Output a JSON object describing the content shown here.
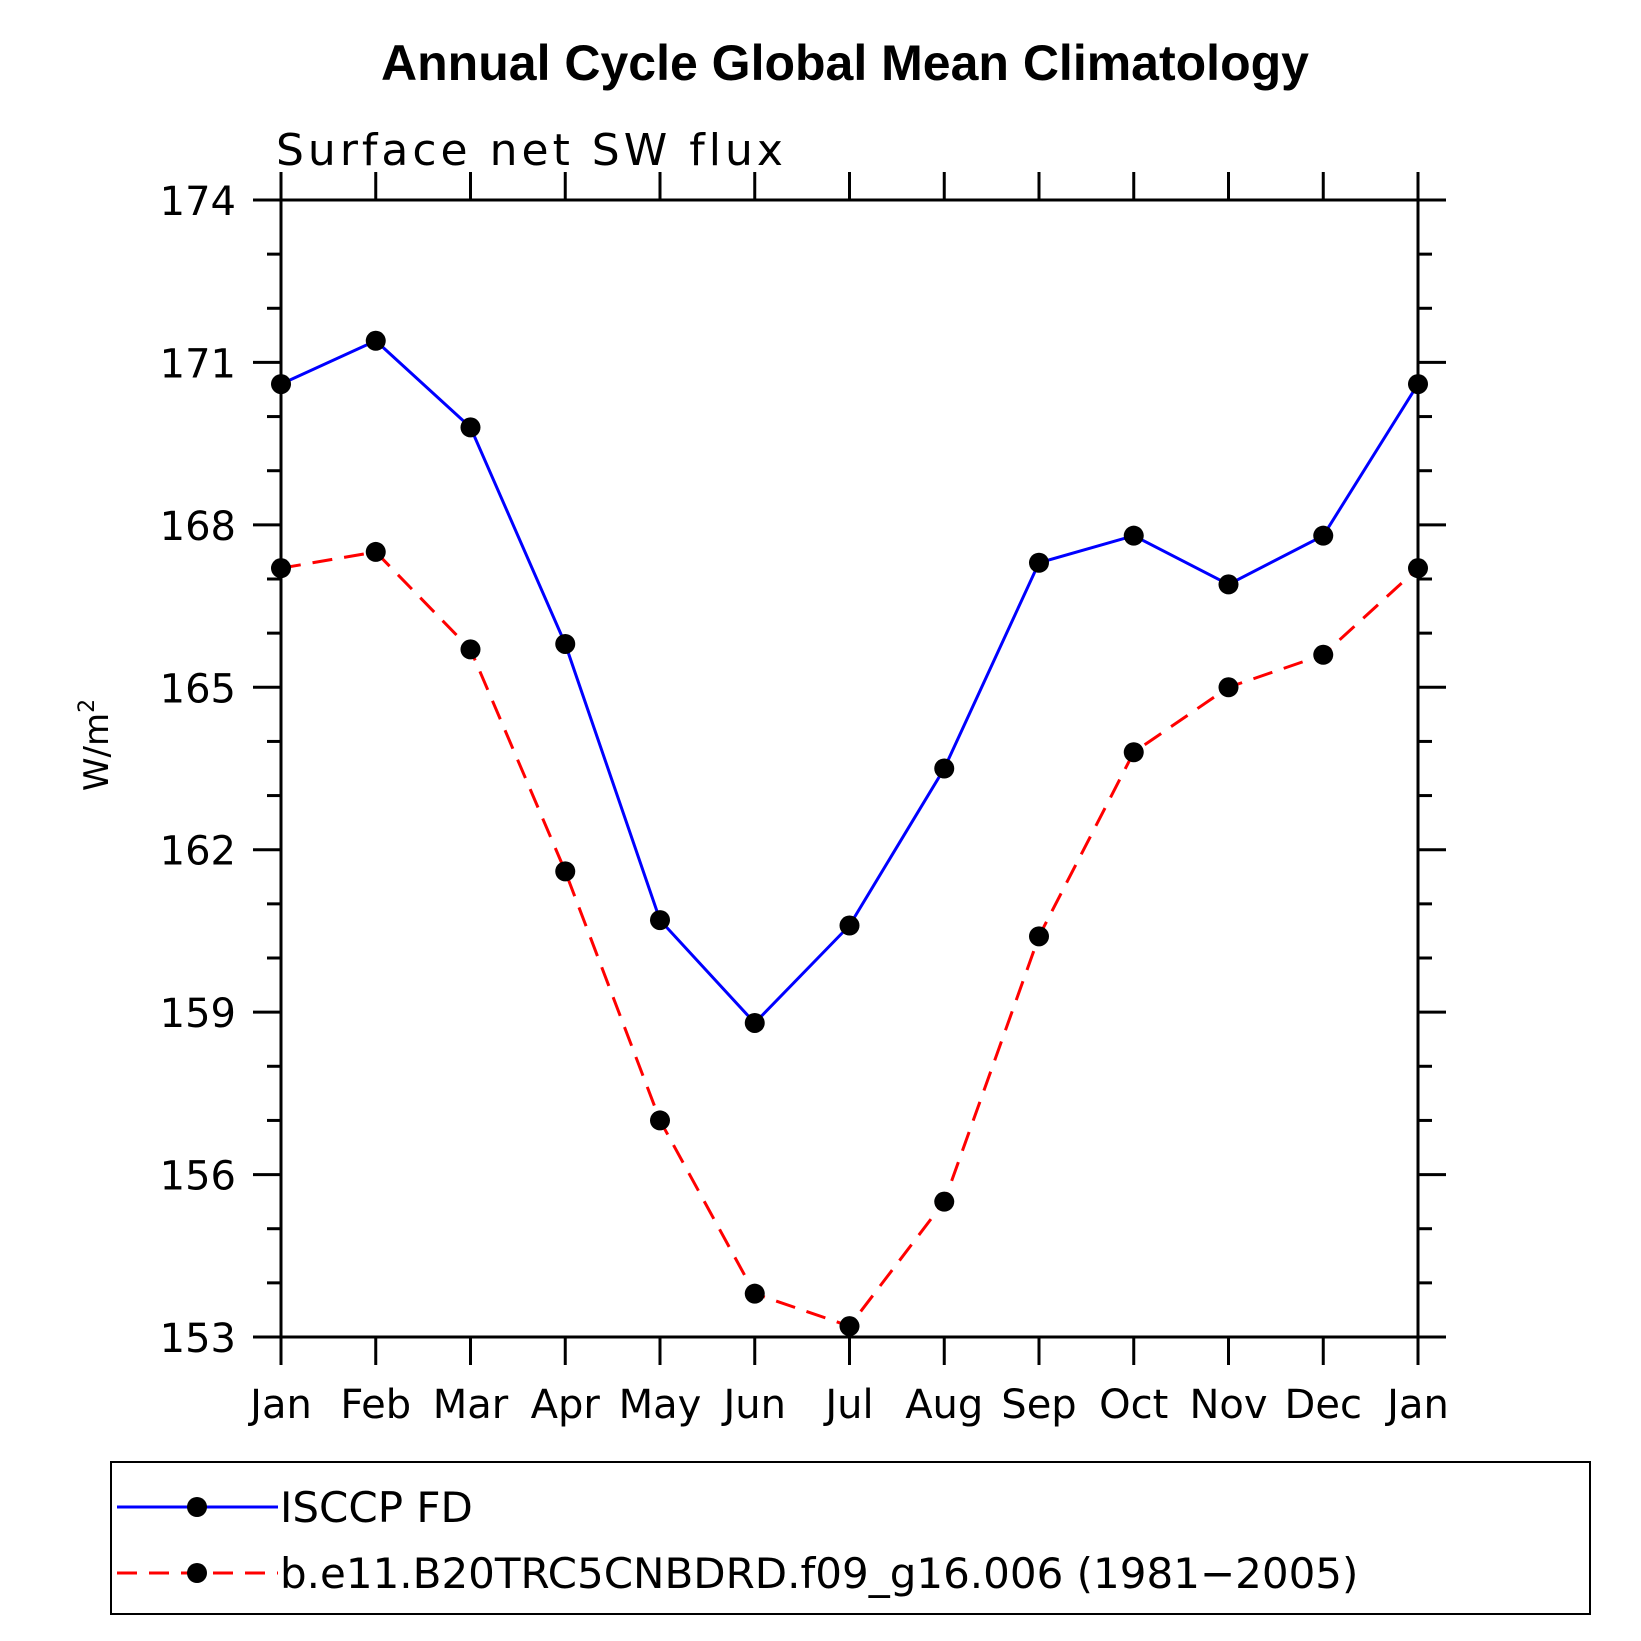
{
  "chart_data": {
    "type": "line",
    "title": "Annual Cycle Global Mean Climatology",
    "subtitle": "Surface net SW flux",
    "ylabel_base": "W/m",
    "ylabel_sup": "2",
    "categories": [
      "Jan",
      "Feb",
      "Mar",
      "Apr",
      "May",
      "Jun",
      "Jul",
      "Aug",
      "Sep",
      "Oct",
      "Nov",
      "Dec",
      "Jan"
    ],
    "ylim": [
      153,
      174
    ],
    "yticks": [
      153,
      156,
      159,
      162,
      165,
      168,
      171,
      174
    ],
    "series": [
      {
        "name": "ISCCP FD",
        "color": "#0000ff",
        "dash": "solid",
        "values": [
          170.6,
          171.4,
          169.8,
          165.8,
          160.7,
          158.8,
          160.6,
          163.5,
          167.3,
          167.8,
          166.9,
          167.8,
          170.6
        ]
      },
      {
        "name": "b.e11.B20TRC5CNBDRD.f09_g16.006 (1981−2005)",
        "color": "#ff0000",
        "dash": "dashed",
        "values": [
          167.2,
          167.5,
          165.7,
          161.6,
          157.0,
          153.8,
          153.2,
          155.5,
          160.4,
          163.8,
          165.0,
          165.6,
          167.2
        ]
      }
    ],
    "legend_position": "bottom",
    "grid": false
  }
}
